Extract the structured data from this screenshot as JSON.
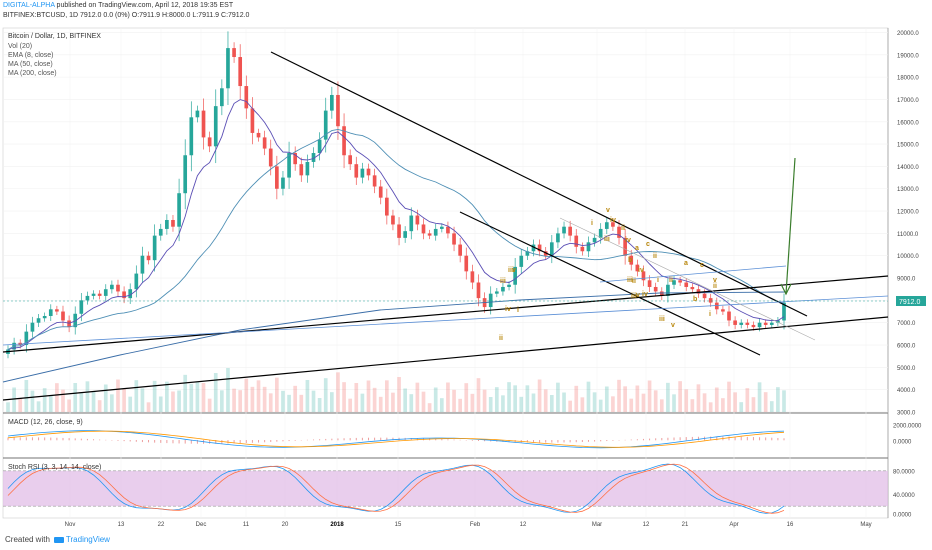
{
  "header": {
    "publisher": "DIGITAL-ALPHA",
    "published_text": " published on TradingView.com, April 12, 2018 19:35 EST",
    "ticker_line": "BITFINEX:BTCUSD, 1D  7912.0 0.0 (0%)  O:7911.9  H:8000.0  L:7911.9  C:7912.0"
  },
  "legend": {
    "title": "Bitcoin / Dollar, 1D, BITFINEX",
    "lines": [
      "Vol (20)",
      "EMA (8, close)",
      "MA (50, close)",
      "MA (200, close)"
    ]
  },
  "panes": {
    "macd_label": "MACD (12, 26, close, 9)",
    "stoch_label": "Stoch RSI (3, 3, 14, 14, close)"
  },
  "price_badge": "7912.0",
  "footer": {
    "created_with": "Created with",
    "brand": "TradingView"
  },
  "colors": {
    "up": "#26a69a",
    "down": "#ef5350",
    "trend": "#000000",
    "ema": "#5b4fb5",
    "ma50": "#4e8fb5",
    "ma200": "#3b6ea8",
    "projection": "#3a7d2c",
    "wave": "#b8860b",
    "stoch_band": "#e1bee7"
  },
  "chart_data": {
    "type": "candlestick",
    "x_ticks": [
      "Nov",
      "13",
      "22",
      "Dec",
      "11",
      "20",
      "2018",
      "15",
      "Feb",
      "12",
      "Mar",
      "12",
      "21",
      "Apr",
      "16",
      "May"
    ],
    "price_axis": {
      "ticks": [
        3000,
        4000,
        5000,
        6000,
        7000,
        8000,
        9000,
        10000,
        11000,
        12000,
        13000,
        14000,
        15000,
        16000,
        17000,
        18000,
        19000,
        20000
      ],
      "ylim": [
        3000,
        20200
      ]
    },
    "macd_axis": {
      "ticks": [
        "2000.0000",
        "0.0000"
      ]
    },
    "stoch_axis": {
      "ticks": [
        "80.0000",
        "40.0000",
        "0.0000"
      ],
      "ylim": [
        0,
        100
      ]
    },
    "wave_labels": [
      "v",
      "iv",
      "iii",
      "ii",
      "i",
      "iii",
      "ii",
      "i",
      "v",
      "iv",
      "iii",
      "a",
      "c",
      "b",
      "iv",
      "ii",
      "i",
      "iii",
      "v",
      "iv",
      "iii",
      "ii",
      "a",
      "c",
      "b",
      "v",
      "ii",
      "iii",
      "v",
      "iv",
      "ii",
      "i"
    ],
    "closes": [
      5800,
      6100,
      6000,
      6600,
      7000,
      7200,
      7300,
      7600,
      7500,
      7100,
      6800,
      7400,
      8000,
      8200,
      8300,
      8200,
      8500,
      8700,
      8400,
      8100,
      8500,
      9200,
      10000,
      9800,
      10900,
      11200,
      11600,
      11300,
      12800,
      14500,
      16200,
      16500,
      15300,
      14900,
      16700,
      17500,
      19300,
      18900,
      17600,
      16600,
      15500,
      15300,
      14800,
      14000,
      13000,
      13500,
      14600,
      14100,
      13600,
      14200,
      14600,
      15200,
      16500,
      17200,
      15800,
      14500,
      14100,
      13500,
      13900,
      13600,
      13100,
      12600,
      11800,
      11400,
      10800,
      11100,
      11800,
      11400,
      11000,
      10900,
      11200,
      11300,
      11000,
      10500,
      10000,
      9300,
      8800,
      8100,
      7700,
      8300,
      8400,
      8600,
      8700,
      9500,
      10000,
      10200,
      10500,
      10200,
      10000,
      10600,
      11000,
      11300,
      10900,
      10400,
      10200,
      10600,
      10800,
      11200,
      11500,
      11300,
      10800,
      10000,
      9600,
      9300,
      8900,
      8600,
      8400,
      8200,
      8700,
      8900,
      8800,
      8600,
      8500,
      8300,
      8100,
      7900,
      7600,
      7500,
      7100,
      6900,
      7000,
      6900,
      6800,
      7000,
      6900,
      7000,
      7100,
      7900
    ],
    "volume_note": "histogram under price (Vol 20)"
  }
}
